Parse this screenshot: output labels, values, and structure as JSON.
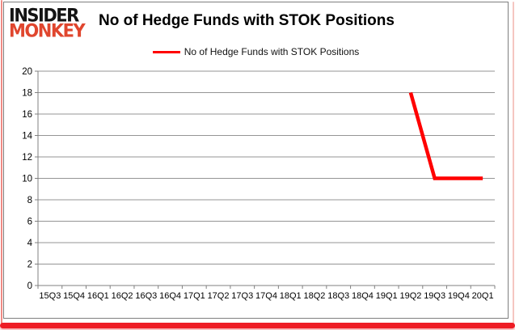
{
  "logo": {
    "line1": "INSIDER",
    "line2": "MONKEY"
  },
  "header": {
    "title": "No of Hedge Funds with STOK Positions"
  },
  "legend": {
    "label": "No of Hedge Funds with STOK Positions",
    "swatch_color": "#ff0000"
  },
  "colors": {
    "series_line": "#ff0000",
    "gridline": "#959595",
    "axis": "#808080",
    "tick_label": "#000000",
    "card_border": "#7f7f7f",
    "frame_red": "#ee1c24",
    "logo_black": "#141414",
    "logo_red": "#e0462e"
  },
  "chart_data": {
    "type": "line",
    "title": "No of Hedge Funds with STOK Positions",
    "categories": [
      "15Q3",
      "15Q4",
      "16Q1",
      "16Q2",
      "16Q3",
      "16Q4",
      "17Q1",
      "17Q2",
      "17Q3",
      "17Q4",
      "18Q1",
      "18Q2",
      "18Q3",
      "18Q4",
      "19Q1",
      "19Q2",
      "19Q3",
      "19Q4",
      "20Q1"
    ],
    "series": [
      {
        "name": "No of Hedge Funds with STOK Positions",
        "color": "#ff0000",
        "values": [
          null,
          null,
          null,
          null,
          null,
          null,
          null,
          null,
          null,
          null,
          null,
          null,
          null,
          null,
          null,
          18,
          10,
          10,
          10
        ]
      }
    ],
    "xlabel": "",
    "ylabel": "",
    "ylim": [
      0,
      20
    ],
    "ytick_step": 2,
    "grid": true,
    "legend_position": "top-center"
  }
}
